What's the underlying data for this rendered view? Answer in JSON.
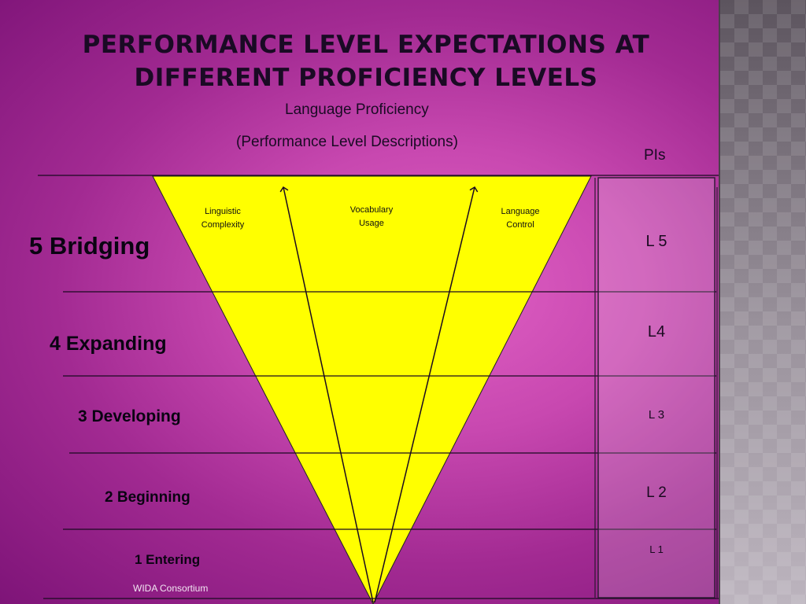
{
  "title": "PERFORMANCE LEVEL EXPECTATIONS AT DIFFERENT PROFICIENCY LEVELS",
  "captions": {
    "language_proficiency": "Language Proficiency",
    "performance_level_descriptions": "(Performance Level Descriptions)",
    "pis_header": "PIs"
  },
  "levels": [
    {
      "label": "5 Bridging",
      "pi": "L 5"
    },
    {
      "label": "4 Expanding",
      "pi": "L4"
    },
    {
      "label": "3 Developing",
      "pi": "L 3"
    },
    {
      "label": "2 Beginning",
      "pi": "L 2"
    },
    {
      "label": "1 Entering",
      "pi": "L 1"
    }
  ],
  "triangle": {
    "fill_color": "#ffff00",
    "labels": {
      "linguistic_complexity": "Linguistic\nComplexity",
      "vocabulary_usage": "Vocabulary\nUsage",
      "language_control": "Language\nControl"
    }
  },
  "footer": {
    "credit": "WIDA Consortium"
  }
}
